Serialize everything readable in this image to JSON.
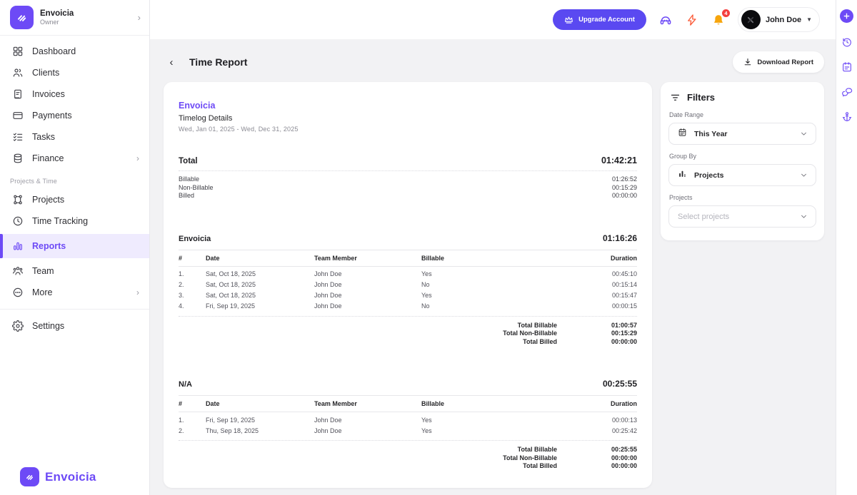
{
  "accent": "#6d4af6",
  "sidebar": {
    "workspace": {
      "name": "Envoicia",
      "role": "Owner"
    },
    "items": [
      {
        "icon": "dashboard-icon",
        "label": "Dashboard"
      },
      {
        "icon": "clients-icon",
        "label": "Clients"
      },
      {
        "icon": "invoices-icon",
        "label": "Invoices"
      },
      {
        "icon": "payments-icon",
        "label": "Payments"
      },
      {
        "icon": "tasks-icon",
        "label": "Tasks"
      },
      {
        "icon": "finance-icon",
        "label": "Finance",
        "chevron": true
      },
      {
        "section": "Projects & Time"
      },
      {
        "icon": "projects-icon",
        "label": "Projects"
      },
      {
        "icon": "time-tracking-icon",
        "label": "Time Tracking"
      },
      {
        "icon": "reports-icon",
        "label": "Reports",
        "active": true
      },
      {
        "icon": "team-icon",
        "label": "Team"
      },
      {
        "icon": "more-icon",
        "label": "More",
        "chevron": true
      },
      {
        "divider": true
      },
      {
        "icon": "settings-icon",
        "label": "Settings"
      }
    ],
    "footer_brand": "Envoicia"
  },
  "topbar": {
    "upgrade_label": "Upgrade Account",
    "notification_count": "4",
    "user_name": "John Doe"
  },
  "page": {
    "title": "Time Report",
    "download_label": "Download Report"
  },
  "report": {
    "company": "Envoicia",
    "title": "Timelog Details",
    "date_range": "Wed, Jan 01, 2025 - Wed, Dec 31, 2025",
    "total": {
      "label": "Total",
      "value": "01:42:21",
      "rows": [
        {
          "label": "Billable",
          "value": "01:26:52"
        },
        {
          "label": "Non-Billable",
          "value": "00:15:29"
        },
        {
          "label": "Billed",
          "value": "00:00:00"
        }
      ]
    },
    "groups": [
      {
        "name": "Envoicia",
        "total": "01:16:26",
        "columns": [
          "#",
          "Date",
          "Team Member",
          "Billable",
          "Duration"
        ],
        "rows": [
          [
            "1.",
            "Sat, Oct 18, 2025",
            "John Doe",
            "Yes",
            "00:45:10"
          ],
          [
            "2.",
            "Sat, Oct 18, 2025",
            "John Doe",
            "No",
            "00:15:14"
          ],
          [
            "3.",
            "Sat, Oct 18, 2025",
            "John Doe",
            "Yes",
            "00:15:47"
          ],
          [
            "4.",
            "Fri, Sep 19, 2025",
            "John Doe",
            "No",
            "00:00:15"
          ]
        ],
        "totals": [
          [
            "Total Billable",
            "01:00:57"
          ],
          [
            "Total Non-Billable",
            "00:15:29"
          ],
          [
            "Total Billed",
            "00:00:00"
          ]
        ]
      },
      {
        "name": "N/A",
        "total": "00:25:55",
        "columns": [
          "#",
          "Date",
          "Team Member",
          "Billable",
          "Duration"
        ],
        "rows": [
          [
            "1.",
            "Fri, Sep 19, 2025",
            "John Doe",
            "Yes",
            "00:00:13"
          ],
          [
            "2.",
            "Thu, Sep 18, 2025",
            "John Doe",
            "Yes",
            "00:25:42"
          ]
        ],
        "totals": [
          [
            "Total Billable",
            "00:25:55"
          ],
          [
            "Total Non-Billable",
            "00:00:00"
          ],
          [
            "Total Billed",
            "00:00:00"
          ]
        ]
      }
    ]
  },
  "filters": {
    "title": "Filters",
    "fields": [
      {
        "label": "Date Range",
        "icon": "calendar-icon",
        "value": "This Year"
      },
      {
        "label": "Group By",
        "icon": "group-by-icon",
        "value": "Projects"
      },
      {
        "label": "Projects",
        "placeholder": "Select projects"
      }
    ]
  },
  "rail_icons": [
    "plus-icon",
    "history-icon",
    "planner-icon",
    "chat-icon",
    "anchor-icon"
  ]
}
